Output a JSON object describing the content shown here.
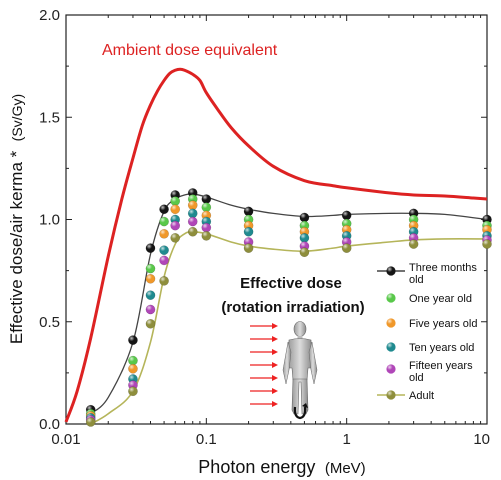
{
  "chart_data": {
    "type": "line",
    "title": "",
    "xlabel": "Photon energy",
    "xlabel_unit": "(MeV)",
    "ylabel": "Effective dose/air kerma *",
    "ylabel_unit": "(Sv/Gy)",
    "x_scale": "log",
    "xlim": [
      0.01,
      10
    ],
    "ylim": [
      0,
      2.0
    ],
    "x_ticks": [
      "0.01",
      "0.1",
      "1",
      "10"
    ],
    "y_ticks": [
      "0.0",
      "0.5",
      "1.0",
      "1.5",
      "2.0"
    ],
    "grid": false,
    "annotations": {
      "ambient": "Ambient dose equivalent",
      "effective_line1": "Effective dose",
      "effective_line2": "(rotation irradiation)"
    },
    "ambient_curve": {
      "name": "Ambient dose equivalent",
      "color": "#dd2222",
      "x": [
        0.01,
        0.012,
        0.015,
        0.02,
        0.025,
        0.03,
        0.035,
        0.04,
        0.045,
        0.05,
        0.055,
        0.06,
        0.065,
        0.07,
        0.08,
        0.09,
        0.1,
        0.12,
        0.15,
        0.2,
        0.3,
        0.5,
        0.8,
        1,
        2,
        3,
        5,
        8,
        10
      ],
      "y": [
        0.01,
        0.16,
        0.42,
        0.82,
        1.1,
        1.3,
        1.46,
        1.56,
        1.63,
        1.68,
        1.715,
        1.73,
        1.735,
        1.73,
        1.71,
        1.68,
        1.62,
        1.54,
        1.45,
        1.36,
        1.26,
        1.19,
        1.165,
        1.155,
        1.13,
        1.12,
        1.115,
        1.105,
        1.1
      ]
    },
    "fit_top": {
      "color": "#444444",
      "x": [
        0.015,
        0.02,
        0.03,
        0.04,
        0.05,
        0.06,
        0.07,
        0.08,
        0.1,
        0.15,
        0.2,
        0.3,
        0.5,
        0.8,
        1,
        2,
        3,
        5,
        10
      ],
      "y": [
        0.05,
        0.13,
        0.4,
        0.83,
        1.04,
        1.1,
        1.12,
        1.125,
        1.11,
        1.07,
        1.05,
        1.03,
        1.015,
        1.02,
        1.025,
        1.03,
        1.03,
        1.025,
        1.0
      ]
    },
    "fit_bottom": {
      "color": "#b5b55a",
      "x": [
        0.015,
        0.02,
        0.03,
        0.04,
        0.05,
        0.06,
        0.07,
        0.08,
        0.1,
        0.15,
        0.2,
        0.3,
        0.5,
        0.8,
        1,
        2,
        3,
        5,
        10
      ],
      "y": [
        0.0,
        0.05,
        0.16,
        0.4,
        0.72,
        0.88,
        0.93,
        0.94,
        0.93,
        0.89,
        0.87,
        0.855,
        0.845,
        0.86,
        0.87,
        0.89,
        0.9,
        0.905,
        0.905
      ]
    },
    "x": [
      0.015,
      0.03,
      0.04,
      0.05,
      0.06,
      0.08,
      0.1,
      0.2,
      0.5,
      1,
      3,
      10
    ],
    "series": [
      {
        "name": "Three months old",
        "color": "#151515",
        "y": [
          0.07,
          0.41,
          0.86,
          1.05,
          1.12,
          1.13,
          1.1,
          1.04,
          1.01,
          1.02,
          1.03,
          1.0
        ]
      },
      {
        "name": "One year old",
        "color": "#59c84a",
        "y": [
          0.05,
          0.31,
          0.76,
          0.99,
          1.09,
          1.1,
          1.06,
          1.0,
          0.97,
          0.98,
          1.0,
          0.97
        ]
      },
      {
        "name": "Five years old",
        "color": "#f0982a",
        "y": [
          0.04,
          0.27,
          0.71,
          0.93,
          1.05,
          1.07,
          1.02,
          0.97,
          0.94,
          0.95,
          0.97,
          0.95
        ]
      },
      {
        "name": "Ten years old",
        "color": "#1f8a8f",
        "y": [
          0.03,
          0.22,
          0.63,
          0.85,
          1.0,
          1.03,
          0.99,
          0.94,
          0.91,
          0.92,
          0.94,
          0.92
        ]
      },
      {
        "name": "Fifteen years old",
        "color": "#b046b8",
        "y": [
          0.02,
          0.19,
          0.56,
          0.8,
          0.97,
          0.99,
          0.96,
          0.89,
          0.87,
          0.89,
          0.91,
          0.9
        ]
      },
      {
        "name": "Adult",
        "color": "#8e8e3c",
        "y": [
          0.01,
          0.16,
          0.49,
          0.7,
          0.91,
          0.94,
          0.92,
          0.86,
          0.84,
          0.86,
          0.88,
          0.88
        ]
      }
    ],
    "legend": {
      "placement": "right-middle",
      "entries": [
        {
          "line1": "Three months",
          "line2": "old",
          "color": "#151515",
          "with_line": true,
          "line_color": "#444444"
        },
        {
          "line1": "One year old",
          "line2": "",
          "color": "#59c84a",
          "with_line": false
        },
        {
          "line1": "Five years old",
          "line2": "",
          "color": "#f0982a",
          "with_line": false
        },
        {
          "line1": "Ten years old",
          "line2": "",
          "color": "#1f8a8f",
          "with_line": false
        },
        {
          "line1": "Fifteen years",
          "line2": "old",
          "color": "#b046b8",
          "with_line": false
        },
        {
          "line1": "Adult",
          "line2": "",
          "color": "#8e8e3c",
          "with_line": true,
          "line_color": "#b5b55a"
        }
      ]
    }
  }
}
